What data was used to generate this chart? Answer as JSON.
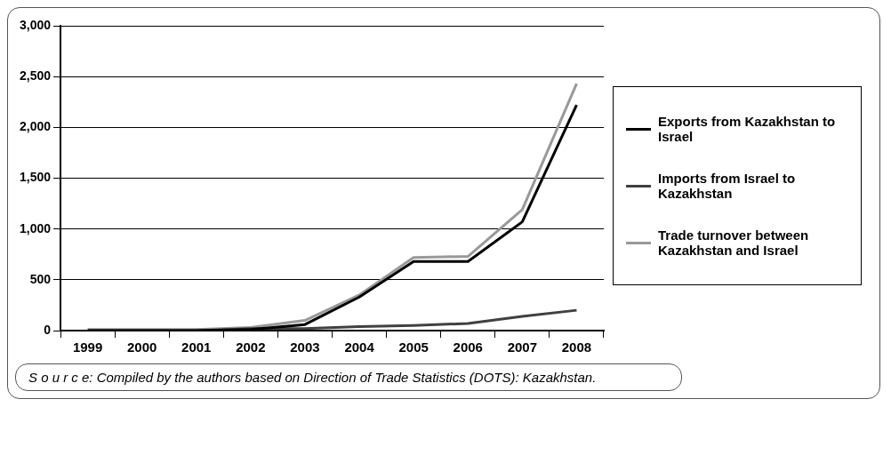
{
  "chart_data": {
    "type": "line",
    "categories": [
      "1999",
      "2000",
      "2001",
      "2002",
      "2003",
      "2004",
      "2005",
      "2006",
      "2007",
      "2008"
    ],
    "series": [
      {
        "name": "Exports from Kazakhstan to Israel",
        "color": "#000000",
        "values": [
          0,
          0,
          0,
          10,
          60,
          330,
          680,
          680,
          1070,
          2220
        ]
      },
      {
        "name": "Imports from Israel to Kazakhstan",
        "color": "#404040",
        "values": [
          0,
          0,
          0,
          20,
          20,
          40,
          50,
          70,
          140,
          200
        ]
      },
      {
        "name": "Trade turnover between Kazakhstan and Israel",
        "color": "#999999",
        "values": [
          10,
          10,
          10,
          30,
          100,
          350,
          720,
          730,
          1190,
          2430
        ]
      }
    ],
    "ylim": [
      0,
      3000
    ],
    "yticks": [
      {
        "value": 0,
        "label": "0"
      },
      {
        "value": 500,
        "label": "500"
      },
      {
        "value": 1000,
        "label": "1,000"
      },
      {
        "value": 1500,
        "label": "1,500"
      },
      {
        "value": 2000,
        "label": "2,000"
      },
      {
        "value": 2500,
        "label": "2,500"
      },
      {
        "value": 3000,
        "label": "3,000"
      }
    ],
    "grid": "y",
    "legend": "right",
    "marker": "none",
    "line_style": "solid",
    "annotations": [
      "S o u r c e:  Compiled by the authors based on Direction of Trade Statistics (DOTS): Kazakhstan."
    ]
  }
}
